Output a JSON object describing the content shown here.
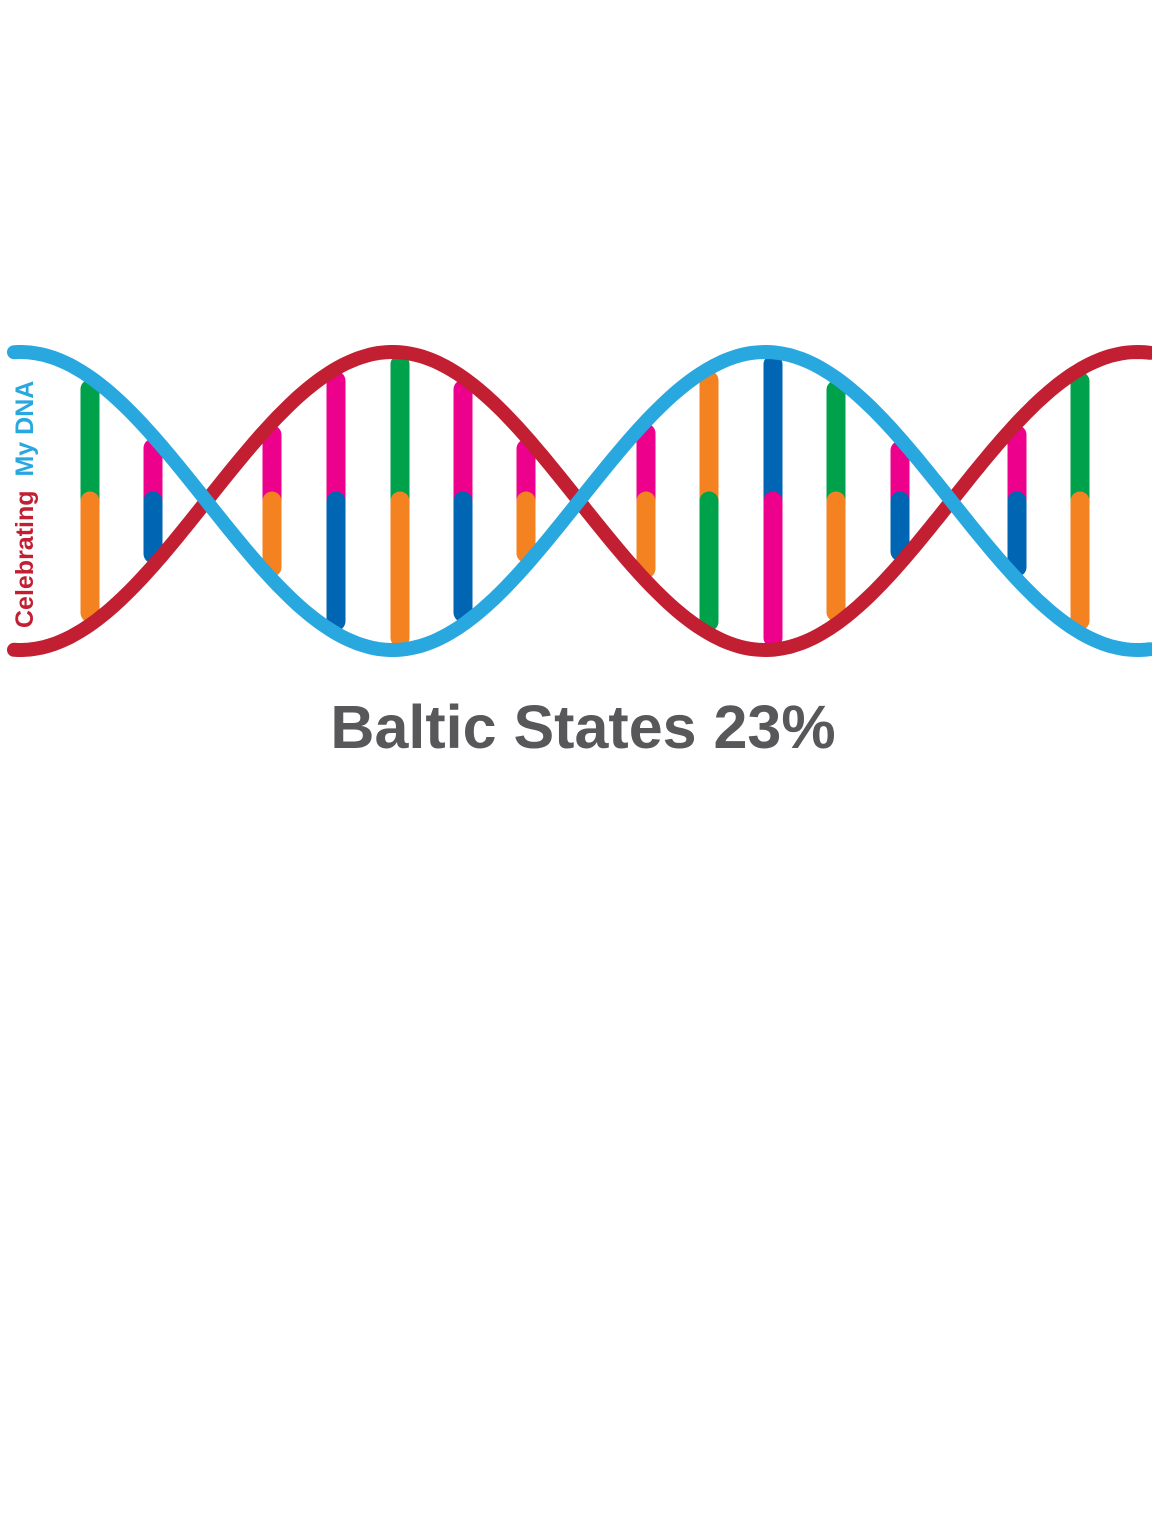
{
  "side_text": {
    "part1": "Celebrating",
    "part2": "My DNA"
  },
  "caption": "Baltic States 23%",
  "colors": {
    "strand_red": "#c21f32",
    "strand_blue": "#29a8e0",
    "green": "#00a14b",
    "orange": "#f58220",
    "magenta": "#ec008c",
    "dark_blue": "#0066b3",
    "text_gray": "#58585a",
    "background": "#ffffff"
  },
  "rungs": [
    {
      "top": "green",
      "bottom": "orange"
    },
    {
      "top": "magenta",
      "bottom": "dark_blue"
    },
    {
      "top": "magenta",
      "bottom": "orange"
    },
    {
      "top": "magenta",
      "bottom": "dark_blue"
    },
    {
      "top": "green",
      "bottom": "orange"
    },
    {
      "top": "magenta",
      "bottom": "dark_blue"
    },
    {
      "top": "magenta",
      "bottom": "orange"
    },
    {
      "top": "magenta",
      "bottom": "orange"
    },
    {
      "top": "orange",
      "bottom": "green"
    },
    {
      "top": "dark_blue",
      "bottom": "magenta"
    },
    {
      "top": "green",
      "bottom": "orange"
    },
    {
      "top": "magenta",
      "bottom": "dark_blue"
    },
    {
      "top": "magenta",
      "bottom": "dark_blue"
    },
    {
      "top": "green",
      "bottom": "orange"
    }
  ]
}
